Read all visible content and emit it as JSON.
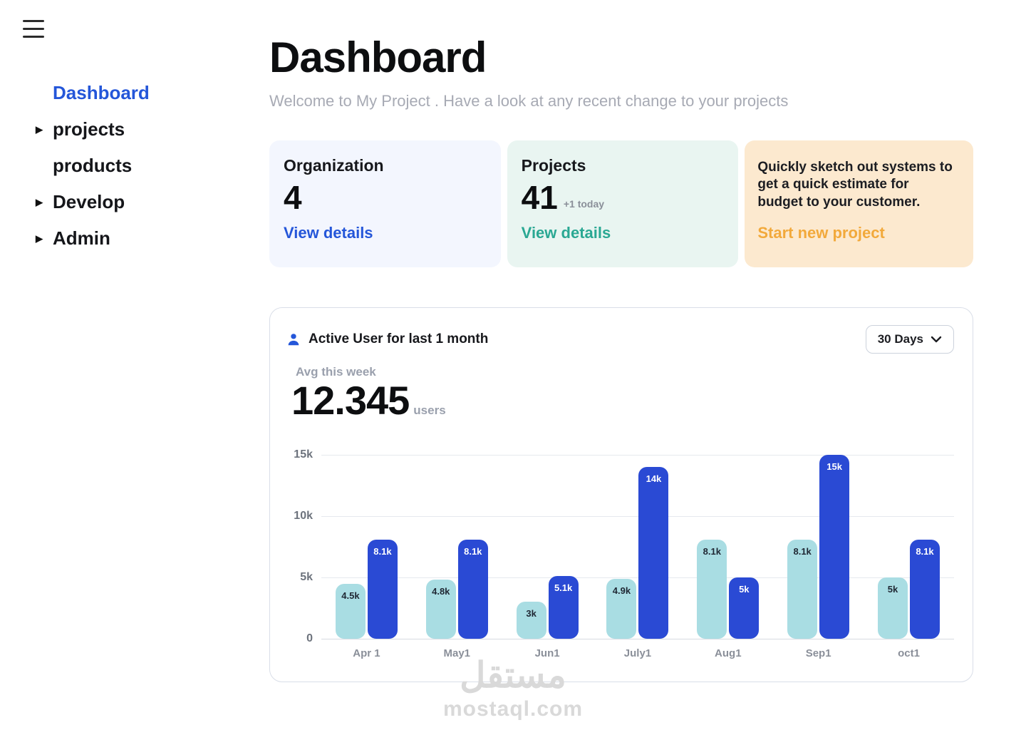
{
  "sidebar": {
    "items": [
      {
        "label": "Dashboard",
        "active": true,
        "caret": false
      },
      {
        "label": "projects",
        "active": false,
        "caret": true
      },
      {
        "label": "products",
        "active": false,
        "caret": false
      },
      {
        "label": "Develop",
        "active": false,
        "caret": true
      },
      {
        "label": "Admin",
        "active": false,
        "caret": true
      }
    ]
  },
  "header": {
    "title": "Dashboard",
    "subtitle": "Welcome to My Project . Have a look at any recent change to your projects"
  },
  "cards": {
    "organization": {
      "title": "Organization",
      "value": "4",
      "link": "View details"
    },
    "projects": {
      "title": "Projects",
      "value": "41",
      "badge": "+1 today",
      "link": "View details"
    },
    "promo": {
      "text": "Quickly sketch out systems to get a quick estimate for budget to your customer.",
      "link": "Start new project"
    }
  },
  "chart_card": {
    "title": "Active  User for last 1 month",
    "range_selector": "30 Days",
    "avg_label": "Avg this week",
    "avg_value": "12.345",
    "avg_unit": "users"
  },
  "chart_data": {
    "type": "bar",
    "title": "Active User for last 1 month",
    "categories": [
      "Apr 1",
      "May1",
      "Jun1",
      "July1",
      "Aug1",
      "Sep1",
      "oct1"
    ],
    "series": [
      {
        "name": "light",
        "color": "#a9dde3",
        "label_color": "#1f2733",
        "values": [
          4500,
          4800,
          3000,
          4900,
          8100,
          8100,
          5000
        ],
        "labels": [
          "4.5k",
          "4.8k",
          "3k",
          "4.9k",
          "8.1k",
          "8.1k",
          "5k"
        ]
      },
      {
        "name": "dark",
        "color": "#2a4ad4",
        "label_color": "#ffffff",
        "values": [
          8100,
          8100,
          5100,
          14000,
          5000,
          15000,
          8100
        ],
        "labels": [
          "8.1k",
          "8.1k",
          "5.1k",
          "14k",
          "5k",
          "15k",
          "8.1k"
        ]
      }
    ],
    "y_ticks": [
      "15k",
      "10k",
      "5k",
      "0"
    ],
    "ylim": [
      0,
      15000
    ],
    "grid": true,
    "legend": false
  },
  "colors": {
    "accent_blue": "#2456d9",
    "accent_teal": "#2aa893",
    "accent_orange": "#f2a93b",
    "bar_light": "#a9dde3",
    "bar_dark": "#2a4ad4"
  },
  "watermark": {
    "line1": "مستقل",
    "line2": "mostaql.com"
  }
}
